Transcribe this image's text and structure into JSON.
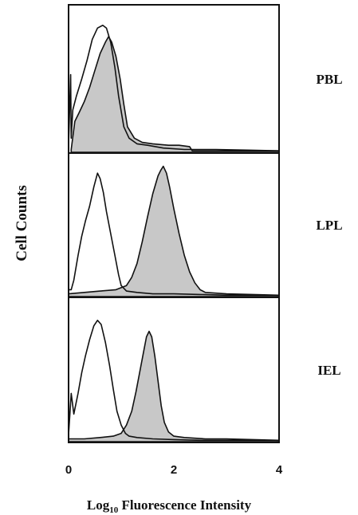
{
  "chart_data": {
    "type": "histogram-overlay",
    "xlabel_main": "Log",
    "xlabel_sub": "10",
    "xlabel_rest": " Fluorescence Intensity",
    "ylabel": "Cell Counts",
    "x_ticks": [
      "0",
      "2",
      "4"
    ],
    "xlim": [
      0,
      4
    ],
    "grid": false,
    "colors": {
      "outline": "#111111",
      "fill": "#c8c8c8"
    },
    "panels": [
      {
        "label": "PBL",
        "control_x": [
          0.0,
          0.02,
          0.04,
          0.05,
          0.08,
          0.15,
          0.25,
          0.35,
          0.45,
          0.55,
          0.65,
          0.72,
          0.8,
          0.88,
          0.95,
          1.05,
          1.15,
          1.3,
          1.5,
          1.8,
          2.2,
          2.8,
          3.4,
          4.0
        ],
        "control_y": [
          0.05,
          0.3,
          0.55,
          0.1,
          0.3,
          0.4,
          0.52,
          0.65,
          0.8,
          0.88,
          0.9,
          0.88,
          0.78,
          0.6,
          0.4,
          0.18,
          0.1,
          0.06,
          0.05,
          0.03,
          0.02,
          0.02,
          0.015,
          0.01
        ],
        "stained_x": [
          0.05,
          0.12,
          0.2,
          0.3,
          0.4,
          0.5,
          0.6,
          0.7,
          0.76,
          0.82,
          0.9,
          0.98,
          1.05,
          1.12,
          1.25,
          1.4,
          1.6,
          1.9,
          2.1,
          2.3,
          2.35,
          2.6,
          3.0,
          3.5,
          4.0
        ],
        "stained_y": [
          0.02,
          0.22,
          0.28,
          0.36,
          0.46,
          0.58,
          0.7,
          0.78,
          0.82,
          0.78,
          0.68,
          0.52,
          0.34,
          0.18,
          0.1,
          0.07,
          0.06,
          0.05,
          0.05,
          0.04,
          0.01,
          0.01,
          0.01,
          0.01,
          0.01
        ]
      },
      {
        "label": "LPL",
        "control_x": [
          0.0,
          0.05,
          0.1,
          0.18,
          0.25,
          0.32,
          0.4,
          0.48,
          0.55,
          0.6,
          0.66,
          0.72,
          0.8,
          0.88,
          0.95,
          1.0,
          1.1,
          1.3,
          1.6,
          2.0,
          2.5,
          3.0,
          3.5,
          4.0
        ],
        "control_y": [
          0.05,
          0.05,
          0.12,
          0.3,
          0.44,
          0.55,
          0.66,
          0.8,
          0.9,
          0.86,
          0.76,
          0.62,
          0.46,
          0.3,
          0.16,
          0.08,
          0.04,
          0.03,
          0.02,
          0.02,
          0.015,
          0.01,
          0.01,
          0.01
        ],
        "stained_x": [
          0.0,
          0.3,
          0.6,
          0.9,
          1.1,
          1.2,
          1.3,
          1.4,
          1.5,
          1.6,
          1.7,
          1.75,
          1.8,
          1.86,
          1.92,
          2.0,
          2.1,
          2.2,
          2.3,
          2.4,
          2.5,
          2.6,
          3.0,
          3.5,
          4.0
        ],
        "stained_y": [
          0.02,
          0.03,
          0.04,
          0.05,
          0.08,
          0.14,
          0.24,
          0.4,
          0.58,
          0.75,
          0.88,
          0.92,
          0.95,
          0.9,
          0.8,
          0.64,
          0.46,
          0.3,
          0.18,
          0.1,
          0.05,
          0.03,
          0.02,
          0.015,
          0.01
        ]
      },
      {
        "label": "IEL",
        "control_x": [
          0.0,
          0.05,
          0.1,
          0.18,
          0.25,
          0.32,
          0.4,
          0.48,
          0.55,
          0.62,
          0.7,
          0.78,
          0.85,
          0.92,
          1.0,
          1.08,
          1.15,
          1.3,
          1.6,
          2.0,
          2.5,
          3.0,
          3.5,
          4.0
        ],
        "control_y": [
          0.05,
          0.35,
          0.2,
          0.35,
          0.5,
          0.62,
          0.74,
          0.84,
          0.88,
          0.85,
          0.72,
          0.55,
          0.38,
          0.22,
          0.12,
          0.06,
          0.04,
          0.03,
          0.02,
          0.015,
          0.01,
          0.01,
          0.01,
          0.01
        ],
        "stained_x": [
          0.0,
          0.3,
          0.6,
          0.85,
          1.0,
          1.1,
          1.2,
          1.28,
          1.35,
          1.42,
          1.48,
          1.53,
          1.58,
          1.64,
          1.7,
          1.76,
          1.82,
          1.9,
          2.0,
          2.2,
          2.6,
          3.0,
          3.5,
          4.0
        ],
        "stained_y": [
          0.02,
          0.02,
          0.03,
          0.04,
          0.06,
          0.12,
          0.22,
          0.36,
          0.5,
          0.64,
          0.76,
          0.8,
          0.76,
          0.62,
          0.44,
          0.26,
          0.14,
          0.07,
          0.04,
          0.03,
          0.02,
          0.02,
          0.015,
          0.01
        ]
      }
    ]
  }
}
